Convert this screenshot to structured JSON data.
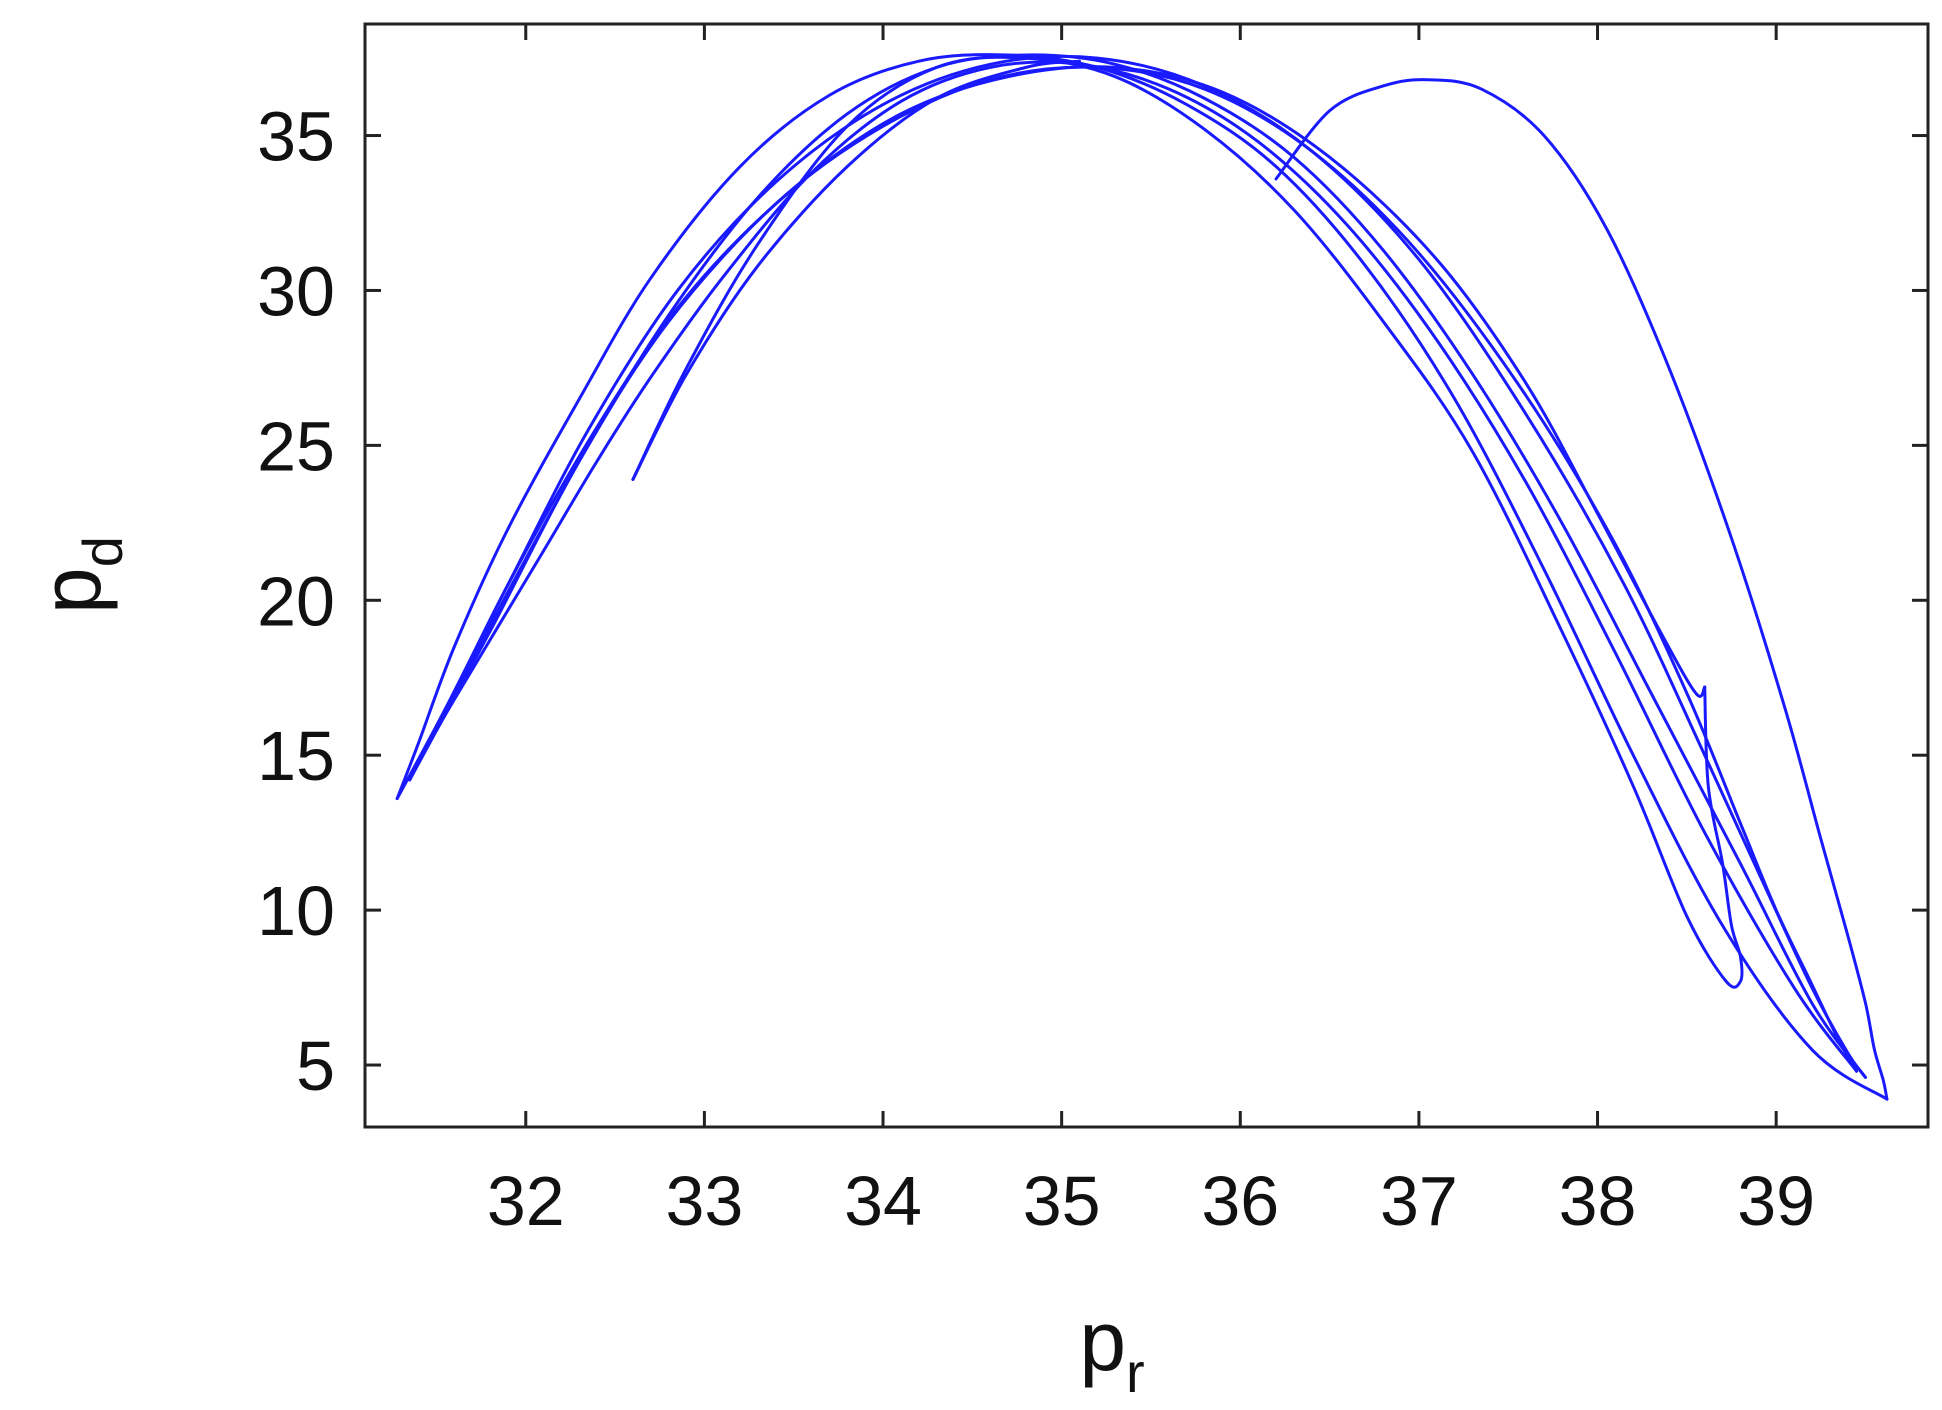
{
  "chart_data": {
    "type": "line",
    "title": "",
    "xlabel": "p",
    "xlabel_subscript": "r",
    "ylabel": "p",
    "ylabel_subscript": "d",
    "xlim": [
      31.1,
      39.85
    ],
    "ylim": [
      3.0,
      38.6
    ],
    "x_ticks": [
      32,
      33,
      34,
      35,
      36,
      37,
      38,
      39
    ],
    "y_ticks": [
      5,
      10,
      15,
      20,
      25,
      30,
      35
    ],
    "grid": false,
    "legend": "none",
    "line_color": "#1a1aff",
    "series": [
      {
        "x": [
          36.2,
          36.5,
          36.8,
          37.05,
          37.35,
          37.7,
          38.05,
          38.4,
          38.75,
          39.05,
          39.25,
          39.4,
          39.5,
          39.55,
          39.6,
          39.62
        ],
        "y": [
          33.6,
          35.8,
          36.6,
          36.8,
          36.5,
          35.0,
          32.0,
          27.5,
          22.0,
          16.5,
          12.3,
          9.2,
          7.0,
          5.5,
          4.5,
          3.9
        ]
      },
      {
        "x": [
          39.62,
          39.2,
          38.7,
          38.2,
          37.7,
          37.2,
          36.7,
          36.2,
          35.7,
          35.2,
          34.7,
          34.2,
          33.7,
          33.2,
          32.7,
          32.3,
          31.9,
          31.6,
          31.4,
          31.28
        ],
        "y": [
          3.9,
          5.5,
          9.5,
          15.0,
          21.0,
          26.5,
          30.8,
          34.0,
          36.0,
          37.2,
          37.6,
          37.4,
          36.3,
          34.0,
          30.4,
          26.5,
          22.3,
          18.5,
          15.4,
          13.6
        ]
      },
      {
        "x": [
          31.28,
          31.55,
          31.9,
          32.35,
          32.85,
          33.4,
          34.0,
          34.6,
          35.2,
          35.8,
          36.4,
          37.0,
          37.6,
          38.15,
          38.6,
          38.95,
          39.2,
          39.4,
          39.5
        ],
        "y": [
          13.6,
          16.5,
          20.5,
          25.5,
          30.0,
          33.5,
          36.0,
          37.3,
          37.5,
          36.6,
          34.5,
          31.0,
          26.0,
          20.5,
          15.0,
          10.6,
          7.5,
          5.4,
          4.6
        ]
      },
      {
        "x": [
          39.5,
          39.2,
          38.8,
          38.3,
          37.8,
          37.3,
          36.8,
          36.3,
          35.8,
          35.3,
          34.8,
          34.3,
          33.8,
          33.3,
          32.8,
          32.35,
          31.95,
          31.6,
          31.35
        ],
        "y": [
          4.6,
          7.0,
          11.5,
          17.0,
          22.5,
          27.3,
          31.3,
          34.3,
          36.2,
          37.3,
          37.6,
          37.2,
          35.7,
          33.0,
          29.2,
          25.0,
          20.8,
          17.0,
          14.2
        ]
      },
      {
        "x": [
          31.35,
          31.8,
          32.3,
          32.8,
          33.4,
          34.0,
          34.6,
          35.2,
          35.8,
          36.4,
          37.0,
          37.6,
          38.1,
          38.5,
          38.8,
          39.0,
          39.2,
          39.35,
          39.45
        ],
        "y": [
          14.2,
          19.0,
          24.5,
          29.0,
          32.8,
          35.3,
          36.8,
          37.2,
          36.5,
          34.5,
          31.2,
          26.6,
          21.8,
          17.0,
          12.8,
          10.0,
          7.6,
          5.8,
          4.8
        ]
      },
      {
        "x": [
          39.45,
          39.1,
          38.6,
          38.1,
          37.6,
          37.1,
          36.6,
          36.1,
          35.6,
          35.1,
          34.6,
          34.1,
          33.6,
          33.1,
          32.7,
          32.4,
          32.1,
          31.85,
          31.6,
          31.5
        ],
        "y": [
          4.8,
          7.5,
          12.5,
          18.3,
          23.8,
          28.4,
          32.1,
          34.8,
          36.5,
          37.3,
          37.2,
          36.1,
          33.8,
          30.4,
          27.2,
          24.5,
          21.6,
          19.2,
          16.8,
          15.8
        ]
      },
      {
        "x": [
          31.5,
          31.9,
          32.4,
          32.9,
          33.5,
          34.1,
          34.7,
          35.3,
          35.9,
          36.5,
          37.1,
          37.6,
          38.0,
          38.35,
          38.55,
          38.6
        ],
        "y": [
          15.8,
          20.5,
          25.6,
          29.8,
          33.3,
          35.7,
          36.9,
          37.2,
          36.4,
          34.3,
          31.0,
          27.0,
          22.8,
          19.0,
          17.0,
          17.2
        ]
      },
      {
        "x": [
          38.6,
          38.62,
          38.7,
          38.75,
          38.8,
          38.8,
          38.72,
          38.5,
          38.2,
          37.8,
          37.3,
          36.8,
          36.3,
          35.8,
          35.3,
          34.8,
          34.3,
          33.8,
          33.3,
          32.9,
          32.6
        ],
        "y": [
          17.2,
          14.0,
          11.5,
          9.5,
          8.5,
          7.7,
          7.7,
          9.8,
          14.0,
          19.0,
          24.8,
          29.0,
          32.6,
          35.2,
          36.9,
          37.5,
          37.2,
          35.3,
          31.5,
          27.5,
          23.9
        ]
      },
      {
        "x": [
          32.6,
          32.9,
          33.3,
          33.8,
          34.3,
          34.8,
          35.1
        ],
        "y": [
          23.9,
          27.3,
          30.8,
          34.0,
          36.2,
          37.2,
          37.4
        ]
      }
    ]
  }
}
